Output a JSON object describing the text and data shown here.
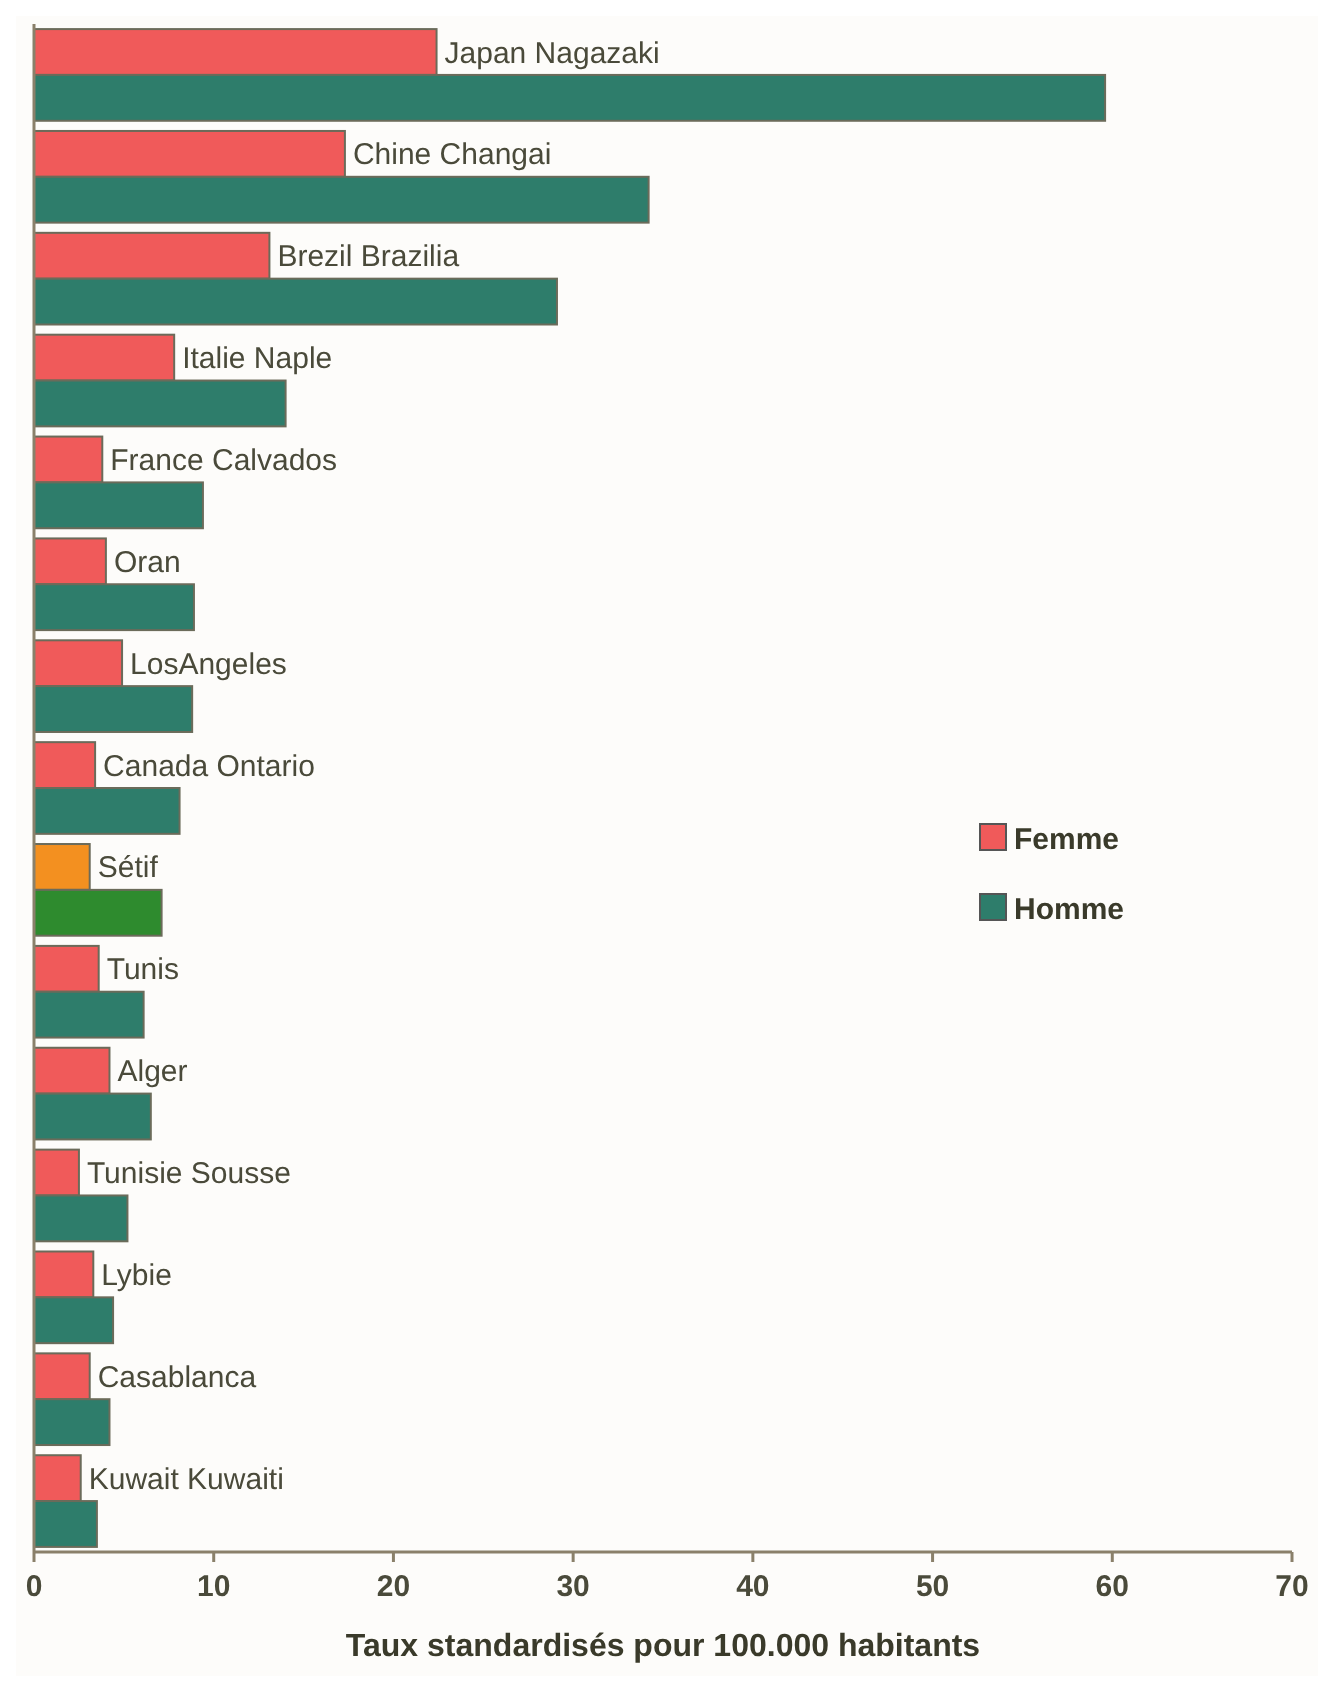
{
  "chart_data": {
    "type": "bar",
    "orientation": "horizontal",
    "xlabel": "Taux standardisés pour 100.000 habitants",
    "categories": [
      "Japan Nagazaki",
      "Chine Changai",
      "Brezil Brazilia",
      "Italie Naple",
      "France Calvados",
      "Oran",
      "LosAngeles",
      "Canada Ontario",
      "Sétif",
      "Tunis",
      "Alger",
      "Tunisie Sousse",
      "Lybie",
      "Casablanca",
      "Kuwait Kuwaiti"
    ],
    "series": [
      {
        "name": "Femme",
        "color": "#f05a5a",
        "colors": [
          "#f05a5a",
          "#f05a5a",
          "#f05a5a",
          "#f05a5a",
          "#f05a5a",
          "#f05a5a",
          "#f05a5a",
          "#f05a5a",
          "#f39020",
          "#f05a5a",
          "#f05a5a",
          "#f05a5a",
          "#f05a5a",
          "#f05a5a",
          "#f05a5a"
        ],
        "values": [
          22.4,
          17.3,
          13.1,
          7.8,
          3.8,
          4.0,
          4.9,
          3.4,
          3.1,
          3.6,
          4.2,
          2.5,
          3.3,
          3.1,
          2.6
        ]
      },
      {
        "name": "Homme",
        "color": "#2e7d6b",
        "colors": [
          "#2e7d6b",
          "#2e7d6b",
          "#2e7d6b",
          "#2e7d6b",
          "#2e7d6b",
          "#2e7d6b",
          "#2e7d6b",
          "#2e7d6b",
          "#2e8b2e",
          "#2e7d6b",
          "#2e7d6b",
          "#2e7d6b",
          "#2e7d6b",
          "#2e7d6b",
          "#2e7d6b"
        ],
        "values": [
          59.6,
          34.2,
          29.1,
          14.0,
          9.4,
          8.9,
          8.8,
          8.1,
          7.1,
          6.1,
          6.5,
          5.2,
          4.4,
          4.2,
          3.5
        ]
      }
    ],
    "xlim": [
      0,
      70
    ],
    "xticks": [
      0,
      10,
      20,
      30,
      40,
      50,
      60,
      70
    ],
    "grid": false,
    "legend": "right"
  }
}
